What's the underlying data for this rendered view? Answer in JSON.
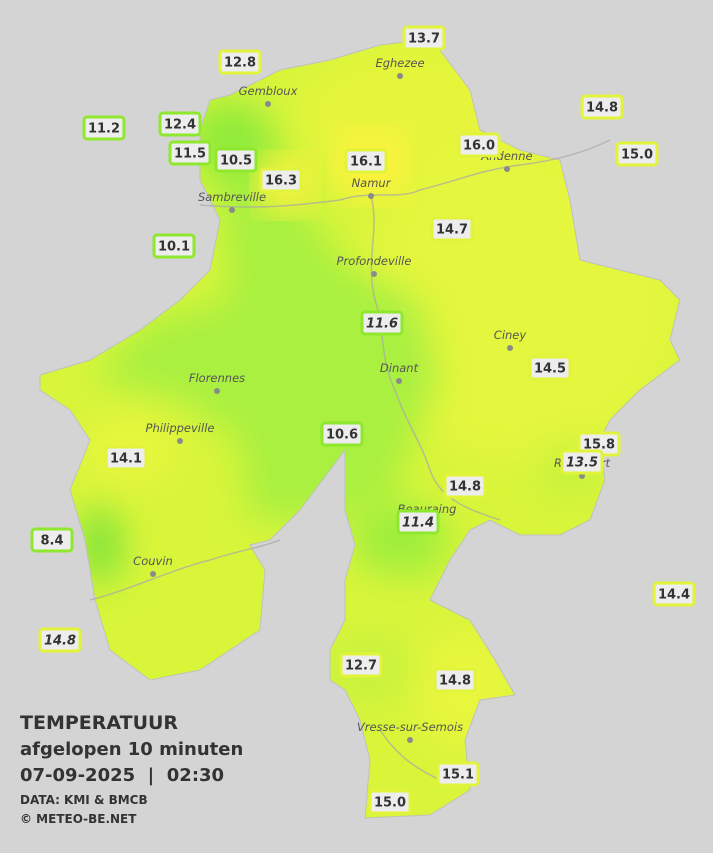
{
  "legend": {
    "title": "TEMPERATUUR",
    "subtitle": "afgelopen 10 minuten",
    "datetime": "07-09-2025  |  02:30",
    "source": "DATA: KMI & BMCB",
    "credit": "© METEO-BE.NET"
  },
  "cities": [
    "Eghezee",
    "Gembloux",
    "Andenne",
    "Namur",
    "Sambreville",
    "Profondeville",
    "Ciney",
    "Dinant",
    "Florennes",
    "Philippeville",
    "Rochefort",
    "Beauraing",
    "Couvin",
    "Vresse-sur-Semois"
  ],
  "stations": [
    "13.7",
    "12.8",
    "14.8",
    "11.2",
    "12.4",
    "16.0",
    "15.0",
    "11.5",
    "10.5",
    "16.1",
    "16.3",
    "14.7",
    "10.1",
    "11.6",
    "14.5",
    "10.6",
    "15.8",
    "13.5",
    "14.1",
    "14.8",
    "11.4",
    "8.4",
    "14.4",
    "14.8",
    "12.7",
    "14.8",
    "15.1",
    "15.0"
  ]
}
